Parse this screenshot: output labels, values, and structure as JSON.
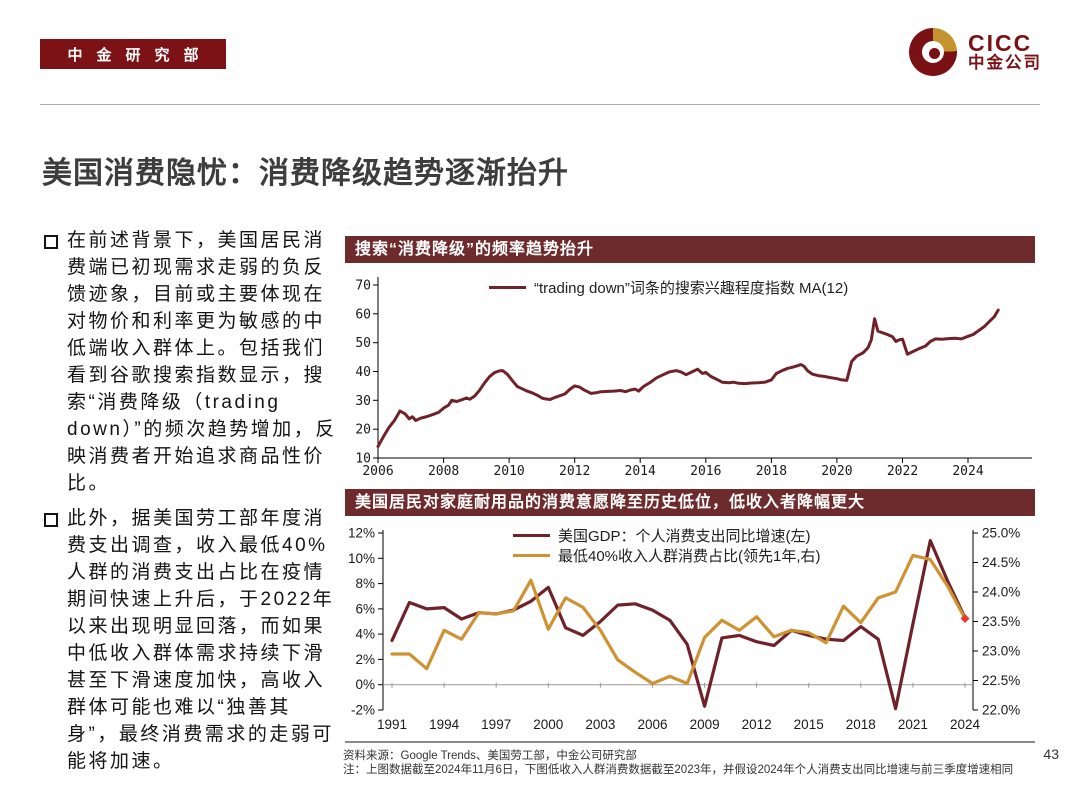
{
  "header": {
    "badge": "中金研究部",
    "logo_text": "CICC",
    "logo_subtext": "中金公司"
  },
  "title": "美国消费隐忧：消费降级趋势逐渐抬升",
  "bullets": [
    {
      "text": "在前述背景下，美国居民消费端已初现需求走弱的负反馈迹象，目前或主要体现在对物价和利率更为敏感的中低端收入群体上。包括我们看到谷歌搜索指数显示，搜索“消费降级（trading down）”的频次趋势增加，反映消费者开始追求商品性价比。"
    },
    {
      "text": "此外，据美国劳工部年度消费支出调查，收入最低40%人群的消费支出占比在疫情期间快速上升后，于2022年以来出现明显回落，而如果中低收入群体需求持续下滑甚至下滑速度加快，高收入群体可能也难以“独善其身”，最终消费需求的走弱可能将加速。"
    }
  ],
  "footer": {
    "source": "资料来源：Google Trends、美国劳工部，中金公司研究部",
    "note": "注：上图数据截至2024年11月6日，下图低收入人群消费数据截至2023年，并假设2024年个人消费支出同比增速与前三季度增速相同",
    "page": "43"
  },
  "colors": {
    "badge_bg": "#7c1215",
    "brand_red": "#7a1114",
    "logo_gold": "#c4932f",
    "chart_header_bg": "#6e2b2d",
    "maroon_line": "#6f2229",
    "gold_line": "#ce9232",
    "marker_red": "#e8382f",
    "zero_axis": "#9a9a9a",
    "axis_black": "#000000"
  },
  "chart_data": [
    {
      "type": "line",
      "title": "搜索“消费降级”的频率趋势抬升",
      "xlabel": "",
      "ylabel": "",
      "ylim": [
        10,
        70
      ],
      "xlim": [
        2006,
        2025
      ],
      "grid": false,
      "legend_position": "top-center",
      "yticks": [
        70,
        60,
        50,
        40,
        30,
        20,
        10
      ],
      "ytick_labels": [
        "70",
        "60",
        "50",
        "40",
        "30",
        "20",
        "10"
      ],
      "xticks": [
        2006,
        2008,
        2010,
        2012,
        2014,
        2016,
        2018,
        2020,
        2022,
        2024
      ],
      "xtick_labels": [
        "2006",
        "2008",
        "2010",
        "2012",
        "2014",
        "2016",
        "2018",
        "2020",
        "2022",
        "2024"
      ],
      "series": [
        {
          "name": "“trading down”词条的搜索兴趣程度指数 MA(12)",
          "color_ref": "maroon_line",
          "x": [
            2006.0,
            2006.17,
            2006.33,
            2006.5,
            2006.67,
            2006.83,
            2006.95,
            2007.05,
            2007.15,
            2007.3,
            2007.5,
            2007.7,
            2007.85,
            2008.0,
            2008.15,
            2008.25,
            2008.4,
            2008.55,
            2008.7,
            2008.8,
            2008.95,
            2009.1,
            2009.25,
            2009.4,
            2009.55,
            2009.7,
            2009.8,
            2009.95,
            2010.1,
            2010.25,
            2010.4,
            2010.55,
            2010.7,
            2010.85,
            2011.0,
            2011.1,
            2011.25,
            2011.4,
            2011.55,
            2011.7,
            2011.85,
            2012.0,
            2012.15,
            2012.3,
            2012.5,
            2012.65,
            2012.8,
            2013.0,
            2013.2,
            2013.4,
            2013.55,
            2013.7,
            2013.85,
            2013.95,
            2014.1,
            2014.3,
            2014.5,
            2014.7,
            2014.9,
            2015.1,
            2015.25,
            2015.4,
            2015.6,
            2015.75,
            2015.9,
            2016.0,
            2016.15,
            2016.35,
            2016.5,
            2016.7,
            2016.85,
            2017.0,
            2017.2,
            2017.4,
            2017.6,
            2017.8,
            2018.0,
            2018.15,
            2018.35,
            2018.5,
            2018.65,
            2018.8,
            2018.9,
            2019.0,
            2019.1,
            2019.25,
            2019.45,
            2019.6,
            2019.8,
            2020.0,
            2020.15,
            2020.3,
            2020.45,
            2020.6,
            2020.8,
            2020.95,
            2021.05,
            2021.15,
            2021.25,
            2021.4,
            2021.55,
            2021.7,
            2021.8,
            2021.9,
            2022.0,
            2022.15,
            2022.3,
            2022.5,
            2022.7,
            2022.85,
            2023.0,
            2023.2,
            2023.4,
            2023.6,
            2023.8,
            2024.0,
            2024.15,
            2024.3,
            2024.5,
            2024.65,
            2024.8,
            2024.92
          ],
          "y": [
            14,
            17.5,
            20.5,
            23,
            26.3,
            25.3,
            23.6,
            24.3,
            23,
            23.8,
            24.4,
            25.2,
            25.8,
            27.3,
            28.3,
            30,
            29.6,
            30.2,
            30.8,
            30.4,
            31.5,
            33.5,
            36,
            38.2,
            39.6,
            40.2,
            40.3,
            39,
            36.8,
            34.8,
            34,
            33.2,
            32.6,
            31.8,
            30.8,
            30.5,
            30.3,
            31,
            31.6,
            32.2,
            33.8,
            35,
            34.6,
            33.5,
            32.4,
            32.6,
            33,
            33.1,
            33.2,
            33.4,
            33,
            33.6,
            33.9,
            33.2,
            34.8,
            36.2,
            37.8,
            38.9,
            39.9,
            40.3,
            39.8,
            38.9,
            40,
            40.8,
            39.3,
            39.7,
            38.3,
            37.2,
            36.3,
            36.1,
            36.3,
            35.9,
            35.8,
            36,
            36.1,
            36.3,
            37.1,
            39.3,
            40.4,
            41.1,
            41.5,
            42,
            42.4,
            41.8,
            40.3,
            39.1,
            38.5,
            38.3,
            37.9,
            37.5,
            37.1,
            36.9,
            43.5,
            45.3,
            46.5,
            48.3,
            51,
            58.3,
            54,
            53.4,
            52.8,
            52,
            50.4,
            51,
            51.2,
            46,
            46.8,
            47.9,
            48.8,
            50.4,
            51.3,
            51.2,
            51.4,
            51.5,
            51.3,
            52.2,
            52.8,
            54,
            55.6,
            57.3,
            59,
            61.3
          ]
        }
      ]
    },
    {
      "type": "line",
      "title": "美国居民对家庭耐用品的消费意愿降至历史低位，低收入者降幅更大",
      "xlabel": "",
      "grid": false,
      "legend_position": "top-left",
      "left_ylim": [
        -2,
        12
      ],
      "right_ylim": [
        22.0,
        25.0
      ],
      "left_tick_values": [
        12,
        10,
        8,
        6,
        4,
        2,
        0,
        -2
      ],
      "left_tick_labels": [
        "12%",
        "10%",
        "8%",
        "6%",
        "4%",
        "2%",
        "0%",
        "-2%"
      ],
      "right_tick_values": [
        25.0,
        24.5,
        24.0,
        23.5,
        23.0,
        22.5,
        22.0
      ],
      "right_tick_labels": [
        "25.0%",
        "24.5%",
        "24.0%",
        "23.5%",
        "23.0%",
        "22.5%",
        "22.0%"
      ],
      "xticks": [
        1991,
        1994,
        1997,
        2000,
        2003,
        2006,
        2009,
        2012,
        2015,
        2018,
        2021,
        2024
      ],
      "xtick_labels": [
        "1991",
        "1994",
        "1997",
        "2000",
        "2003",
        "2006",
        "2009",
        "2012",
        "2015",
        "2018",
        "2021",
        "2024"
      ],
      "years": [
        1991,
        1992,
        1993,
        1994,
        1995,
        1996,
        1997,
        1998,
        1999,
        2000,
        2001,
        2002,
        2003,
        2004,
        2005,
        2006,
        2007,
        2008,
        2009,
        2010,
        2011,
        2012,
        2013,
        2014,
        2015,
        2016,
        2017,
        2018,
        2019,
        2020,
        2021,
        2022,
        2023,
        2024
      ],
      "series": [
        {
          "name": "美国GDP：个人消费支出同比增速(左)",
          "axis": "left",
          "color_ref": "maroon_line",
          "values": [
            3.5,
            6.5,
            6.0,
            6.1,
            5.2,
            5.7,
            5.6,
            5.9,
            6.6,
            7.7,
            4.5,
            3.9,
            5.0,
            6.3,
            6.4,
            5.9,
            5.1,
            3.2,
            -1.7,
            3.7,
            3.9,
            3.4,
            3.1,
            4.3,
            3.9,
            3.6,
            3.5,
            4.6,
            3.6,
            -1.9,
            4.8,
            11.4,
            8.2,
            5.3
          ]
        },
        {
          "name": "最低40%收入人群消费占比(领先1年,右)",
          "axis": "right",
          "color_ref": "gold_line",
          "values": [
            22.95,
            22.95,
            22.7,
            23.35,
            23.2,
            23.65,
            23.63,
            23.68,
            24.2,
            23.37,
            23.9,
            23.74,
            23.35,
            22.85,
            22.64,
            22.45,
            22.57,
            22.45,
            23.23,
            23.52,
            23.35,
            23.58,
            23.24,
            23.35,
            23.31,
            23.14,
            23.76,
            23.48,
            23.9,
            24.0,
            24.62,
            24.55,
            24.1,
            23.55
          ]
        }
      ],
      "end_marker": {
        "x": 2024,
        "value": 23.55,
        "axis": "right"
      }
    }
  ]
}
